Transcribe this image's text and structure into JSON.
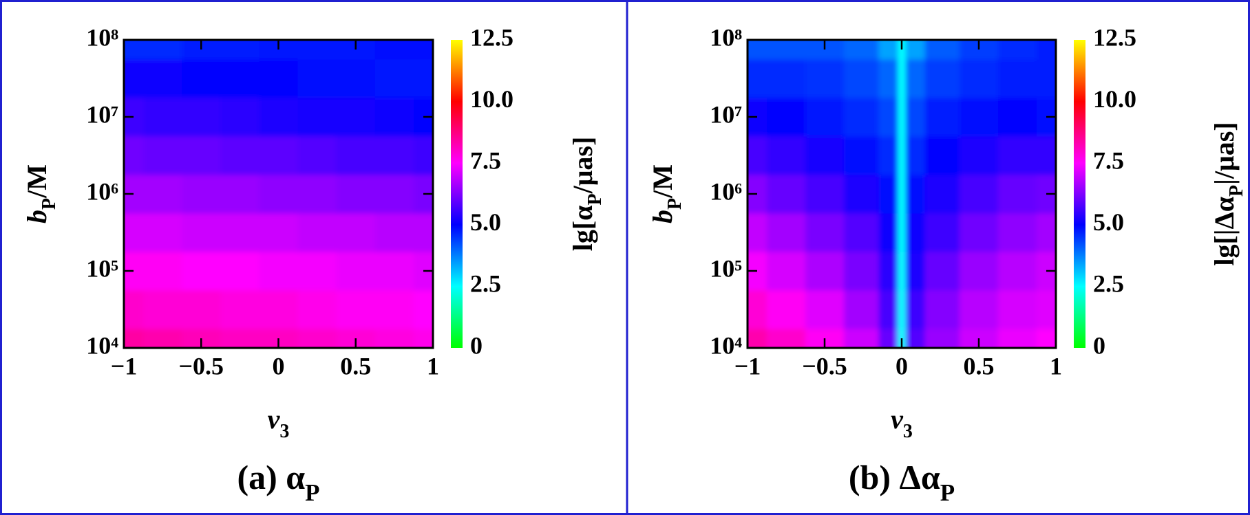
{
  "chart_data": [
    {
      "type": "heatmap",
      "xlabel": [
        "v",
        "3"
      ],
      "ylabel": [
        "b",
        "P",
        "/M"
      ],
      "caption": [
        "(a) α",
        "P"
      ],
      "x": [
        -1,
        -0.75,
        -0.5,
        -0.25,
        0,
        0.25,
        0.5,
        0.75,
        1
      ],
      "y": [
        10000,
        31623,
        100000,
        316228,
        1000000,
        3162278,
        10000000,
        31622777,
        100000000
      ],
      "z": [
        [
          8.4,
          8.3,
          8.2,
          8.1,
          8.1,
          8.0,
          7.9,
          7.8,
          7.7
        ],
        [
          8.0,
          7.9,
          7.9,
          7.8,
          7.8,
          7.7,
          7.6,
          7.6,
          7.5
        ],
        [
          7.6,
          7.6,
          7.5,
          7.5,
          7.4,
          7.4,
          7.3,
          7.3,
          7.2
        ],
        [
          7.1,
          7.1,
          7.0,
          7.0,
          7.0,
          6.9,
          6.9,
          6.8,
          6.8
        ],
        [
          6.6,
          6.6,
          6.5,
          6.5,
          6.4,
          6.4,
          6.3,
          6.3,
          6.2
        ],
        [
          6.1,
          6.0,
          6.0,
          5.9,
          5.9,
          5.8,
          5.7,
          5.7,
          5.6
        ],
        [
          5.6,
          5.5,
          5.5,
          5.4,
          5.3,
          5.2,
          5.2,
          5.1,
          5.0
        ],
        [
          5.1,
          5.1,
          5.0,
          5.0,
          5.0,
          4.9,
          4.9,
          4.8,
          4.8
        ],
        [
          4.6,
          4.6,
          4.7,
          4.7,
          4.8,
          4.8,
          4.8,
          4.9,
          4.9
        ]
      ],
      "xlim": [
        -1,
        1
      ],
      "ylim": [
        10000,
        100000000
      ],
      "ylog": true,
      "xticks": [
        {
          "value": -1,
          "label": "−1"
        },
        {
          "value": -0.5,
          "label": "−0.5"
        },
        0,
        0.5,
        1
      ],
      "yticks": [
        {
          "value": 10000,
          "label": "10⁴"
        },
        {
          "value": 100000,
          "label": "10⁵"
        },
        {
          "value": 1000000,
          "label": "10⁶"
        },
        {
          "value": 10000000,
          "label": "10⁷"
        },
        {
          "value": 100000000,
          "label": "10⁸"
        }
      ],
      "colorbar": {
        "label": [
          "lg[α",
          "P",
          "/μas]"
        ],
        "lim": [
          0,
          12.5
        ],
        "ticks": [
          0,
          2.5,
          {
            "value": 5,
            "label": "5.0"
          },
          7.5,
          {
            "value": 10,
            "label": "10.0"
          },
          12.5
        ],
        "colors": [
          "#00ff00",
          "#00ffff",
          "#0000ff",
          "#ff00ff",
          "#ff0000",
          "#ffff00"
        ]
      }
    },
    {
      "type": "heatmap",
      "xlabel": [
        "v",
        "3"
      ],
      "ylabel": [
        "b",
        "P",
        "/M"
      ],
      "caption": [
        "(b) Δα",
        "P"
      ],
      "x": [
        -1,
        -0.75,
        -0.5,
        -0.25,
        -0.05,
        0,
        0.05,
        0.25,
        0.5,
        0.75,
        1
      ],
      "y": [
        10000,
        31623,
        100000,
        316228,
        1000000,
        3162278,
        10000000,
        31622777,
        100000000
      ],
      "z": [
        [
          8.3,
          8.0,
          7.6,
          7.0,
          6.0,
          2.5,
          5.8,
          6.5,
          7.0,
          7.3,
          7.5
        ],
        [
          7.9,
          7.6,
          7.2,
          6.6,
          5.7,
          2.5,
          5.6,
          6.3,
          6.8,
          7.1,
          7.2
        ],
        [
          7.4,
          7.1,
          6.7,
          6.2,
          5.4,
          2.5,
          5.3,
          6.0,
          6.5,
          6.8,
          7.0
        ],
        [
          6.9,
          6.6,
          6.2,
          5.8,
          5.1,
          2.5,
          5.1,
          5.6,
          6.1,
          6.4,
          6.6
        ],
        [
          6.3,
          6.0,
          5.7,
          5.3,
          4.9,
          2.5,
          4.9,
          5.3,
          5.7,
          6.0,
          6.1
        ],
        [
          5.7,
          5.5,
          5.2,
          4.9,
          4.6,
          2.5,
          4.6,
          5.0,
          5.3,
          5.5,
          5.5
        ],
        [
          5.1,
          5.0,
          4.8,
          4.6,
          4.3,
          2.5,
          4.3,
          4.7,
          4.9,
          5.0,
          4.9
        ],
        [
          4.6,
          4.6,
          4.5,
          4.3,
          4.0,
          2.5,
          4.0,
          4.4,
          4.6,
          4.7,
          4.7
        ],
        [
          4.2,
          4.2,
          4.2,
          4.0,
          3.4,
          2.5,
          3.4,
          4.1,
          4.4,
          4.6,
          4.7
        ]
      ],
      "xlim": [
        -1,
        1
      ],
      "ylim": [
        10000,
        100000000
      ],
      "ylog": true,
      "xticks": [
        {
          "value": -1,
          "label": "−1"
        },
        {
          "value": -0.5,
          "label": "−0.5"
        },
        0,
        0.5,
        1
      ],
      "yticks": [
        {
          "value": 10000,
          "label": "10⁴"
        },
        {
          "value": 100000,
          "label": "10⁵"
        },
        {
          "value": 1000000,
          "label": "10⁶"
        },
        {
          "value": 10000000,
          "label": "10⁷"
        },
        {
          "value": 100000000,
          "label": "10⁸"
        }
      ],
      "colorbar": {
        "label": [
          "lg[|Δα",
          "P",
          "|/μas]"
        ],
        "lim": [
          0,
          12.5
        ],
        "ticks": [
          0,
          2.5,
          {
            "value": 5,
            "label": "5.0"
          },
          7.5,
          {
            "value": 10,
            "label": "10.0"
          },
          12.5
        ],
        "colors": [
          "#00ff00",
          "#00ffff",
          "#0000ff",
          "#ff00ff",
          "#ff0000",
          "#ffff00"
        ]
      }
    }
  ]
}
